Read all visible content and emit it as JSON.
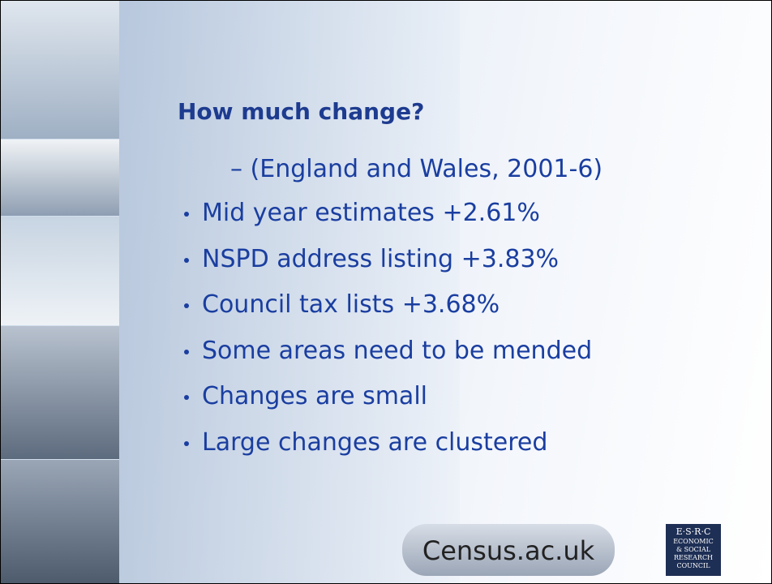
{
  "title": "How much change?",
  "subtitle": "– (England and Wales, 2001-6)",
  "bullets": [
    "Mid year estimates +2.61%",
    "NSPD address listing +3.83%",
    "Council tax lists +3.68%",
    "Some areas need to be mended",
    "Changes are small",
    "Large changes are clustered"
  ],
  "logos": {
    "census": "Census.ac.uk",
    "esrc": [
      "E·S·R·C",
      "ECONOMIC",
      "& SOCIAL",
      "RESEARCH",
      "COUNCIL"
    ]
  }
}
